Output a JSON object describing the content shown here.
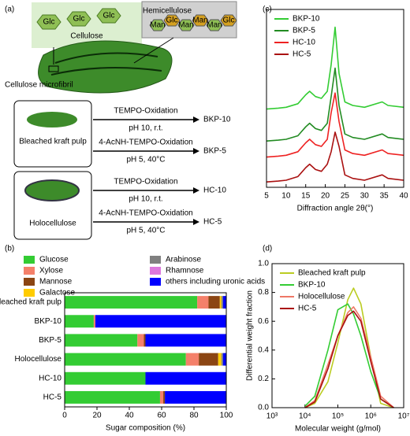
{
  "diagram": {
    "label": "(a)",
    "cellulose": {
      "title": "Cellulose",
      "units": [
        "Glc",
        "Glc",
        "Glc"
      ]
    },
    "hemicellulose": {
      "title": "Hemicellulose",
      "units": [
        "Man",
        "Glc",
        "Man",
        "Man",
        "Man",
        "Glc"
      ]
    },
    "microfibril": "Cellulose microfibril",
    "sources": [
      "Bleached kraft pulp",
      "Holocellulose"
    ],
    "reactions": [
      {
        "top": "TEMPO-Oxidation",
        "bottom": "pH 10, r.t.",
        "product": "BKP-10"
      },
      {
        "top": "4-AcNH-TEMPO-Oxidation",
        "bottom": "pH 5, 40°C",
        "product": "BKP-5"
      },
      {
        "top": "TEMPO-Oxidation",
        "bottom": "pH 10, r.t.",
        "product": "HC-10"
      },
      {
        "top": "4-AcNH-TEMPO-Oxidation",
        "bottom": "pH 5, 40°C",
        "product": "HC-5"
      }
    ],
    "product_colors": [
      "#33cc33",
      "#228b22",
      "#ee2222",
      "#aa1111"
    ]
  },
  "chart_data": [
    {
      "type": "bar",
      "label": "(b)",
      "orientation": "horizontal",
      "stacked": true,
      "categories": [
        "Bleached kraft pulp",
        "BKP-10",
        "BKP-5",
        "Holocellulose",
        "HC-10",
        "HC-5"
      ],
      "series": [
        {
          "name": "Glucose",
          "color": "#33cc33",
          "values": [
            82,
            18,
            45,
            75,
            50,
            59
          ]
        },
        {
          "name": "Xylose",
          "color": "#f4806a",
          "values": [
            7,
            1,
            4,
            8,
            0,
            2
          ]
        },
        {
          "name": "Mannose",
          "color": "#8b4513",
          "values": [
            7,
            0,
            1,
            12,
            0,
            1
          ]
        },
        {
          "name": "Galactose",
          "color": "#ffcc00",
          "values": [
            1,
            0,
            0,
            2,
            0,
            0
          ]
        },
        {
          "name": "Arabinose",
          "color": "#808080",
          "values": [
            1,
            0,
            0,
            1,
            0,
            0
          ]
        },
        {
          "name": "Rhamnose",
          "color": "#dd77dd",
          "values": [
            0,
            0,
            0,
            0,
            0,
            0
          ]
        },
        {
          "name": "others including uronic acids",
          "color": "#0000ff",
          "values": [
            2,
            81,
            50,
            2,
            50,
            38
          ]
        }
      ],
      "xlim": [
        0,
        100
      ],
      "xticks": [
        0,
        20,
        40,
        60,
        80,
        100
      ],
      "x_label": "Sugar composition (%)",
      "legend": "top"
    },
    {
      "type": "line",
      "label": "(c)",
      "x": [
        5,
        8,
        10,
        13,
        15,
        16,
        17.5,
        19,
        20.5,
        21.5,
        22.5,
        23.5,
        25,
        27,
        30,
        34.5,
        36,
        40
      ],
      "series": [
        {
          "name": "BKP-10",
          "color": "#33cc33",
          "values": [
            44,
            44.5,
            45,
            47,
            52,
            54,
            51,
            50,
            54,
            69,
            90,
            64,
            48,
            46,
            45,
            48,
            46,
            45
          ]
        },
        {
          "name": "BKP-5",
          "color": "#228b22",
          "values": [
            26,
            26.5,
            27,
            29,
            34,
            36,
            33,
            32,
            36,
            51,
            67,
            46,
            30,
            28,
            27,
            30,
            28,
            27
          ]
        },
        {
          "name": "HC-10",
          "color": "#ee2222",
          "values": [
            17,
            17.5,
            18,
            20,
            25,
            27,
            24,
            23,
            27,
            42,
            53,
            37,
            21,
            19,
            18,
            21,
            19,
            18
          ]
        },
        {
          "name": "HC-5",
          "color": "#aa1111",
          "values": [
            3,
            3.5,
            4,
            6,
            11,
            13,
            10,
            9,
            13,
            20,
            31,
            23,
            7,
            5,
            4,
            7,
            5,
            4
          ]
        }
      ],
      "xlim": [
        5,
        40
      ],
      "xticks": [
        5,
        10,
        15,
        20,
        25,
        30,
        35,
        40
      ],
      "ylim": [
        0,
        100
      ],
      "x_label": "Diffraction angle 2θ(°)",
      "legend": "top-left"
    },
    {
      "type": "line",
      "label": "(d)",
      "xscale": "log",
      "x": [
        10000,
        20000,
        50000,
        100000,
        200000,
        300000,
        500000,
        1000000,
        2000000,
        5000000
      ],
      "series": [
        {
          "name": "Bleached kraft pulp",
          "color": "#bbcc22",
          "values": [
            0,
            0.03,
            0.18,
            0.45,
            0.75,
            0.83,
            0.72,
            0.35,
            0.03,
            0
          ]
        },
        {
          "name": "BKP-10",
          "color": "#33cc33",
          "values": [
            0.01,
            0.08,
            0.4,
            0.68,
            0.72,
            0.65,
            0.5,
            0.25,
            0.06,
            0
          ]
        },
        {
          "name": "Holocellulose",
          "color": "#ee7766",
          "values": [
            0,
            0.05,
            0.3,
            0.5,
            0.66,
            0.7,
            0.62,
            0.35,
            0.08,
            0
          ]
        },
        {
          "name": "HC-5",
          "color": "#aa1111",
          "values": [
            0,
            0.04,
            0.27,
            0.5,
            0.64,
            0.67,
            0.6,
            0.32,
            0.06,
            0
          ]
        }
      ],
      "xlim": [
        1000,
        10000000
      ],
      "xticks": [
        {
          "value": 1000,
          "label": "10³"
        },
        {
          "value": 10000,
          "label": "10⁴"
        },
        {
          "value": 100000,
          "label": "10⁵"
        },
        {
          "value": 1000000,
          "label": "10⁶"
        },
        {
          "value": 10000000,
          "label": "10⁷"
        }
      ],
      "ylim": [
        0,
        1
      ],
      "yticks": [
        {
          "value": 0,
          "label": "0.0"
        },
        0.2,
        0.4,
        0.6,
        0.8,
        {
          "value": 1,
          "label": "1.0"
        }
      ],
      "x_label": "Molecular weight (g/mol)",
      "y_label": "Differential weight fraction",
      "legend": "top-left"
    }
  ]
}
